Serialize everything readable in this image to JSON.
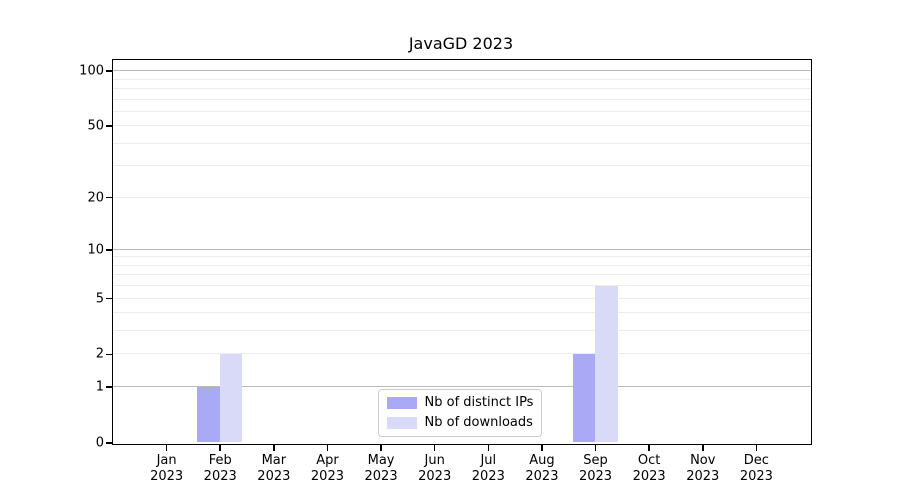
{
  "chart_data": {
    "type": "bar",
    "title": "JavaGD 2023",
    "categories": [
      "Jan",
      "Feb",
      "Mar",
      "Apr",
      "May",
      "Jun",
      "Jul",
      "Aug",
      "Sep",
      "Oct",
      "Nov",
      "Dec"
    ],
    "x_year_label": "2023",
    "series": [
      {
        "name": "Nb of distinct IPs",
        "color": "#a9a9f5",
        "values": [
          0,
          1,
          0,
          0,
          0,
          0,
          0,
          0,
          2,
          0,
          0,
          0
        ]
      },
      {
        "name": "Nb of downloads",
        "color": "#d9d9f8",
        "values": [
          0,
          2,
          0,
          0,
          0,
          0,
          0,
          0,
          6,
          0,
          0,
          0
        ]
      }
    ],
    "xlabel": "",
    "ylabel": "",
    "y_scale": "log1p",
    "ylim": [
      0,
      115
    ],
    "y_ticks": [
      0,
      1,
      2,
      5,
      10,
      20,
      50,
      100
    ],
    "y_major_grid_values": [
      1,
      10,
      100
    ],
    "y_minor_grid_values": [
      2,
      3,
      4,
      5,
      6,
      7,
      8,
      9,
      20,
      30,
      40,
      50,
      60,
      70,
      80,
      90
    ],
    "grid": true,
    "legend_position": "lower center inside plot"
  },
  "colors": {
    "major_grid": "#bbbbbb",
    "minor_grid": "#ececec",
    "spine": "#000000",
    "background": "#ffffff"
  }
}
